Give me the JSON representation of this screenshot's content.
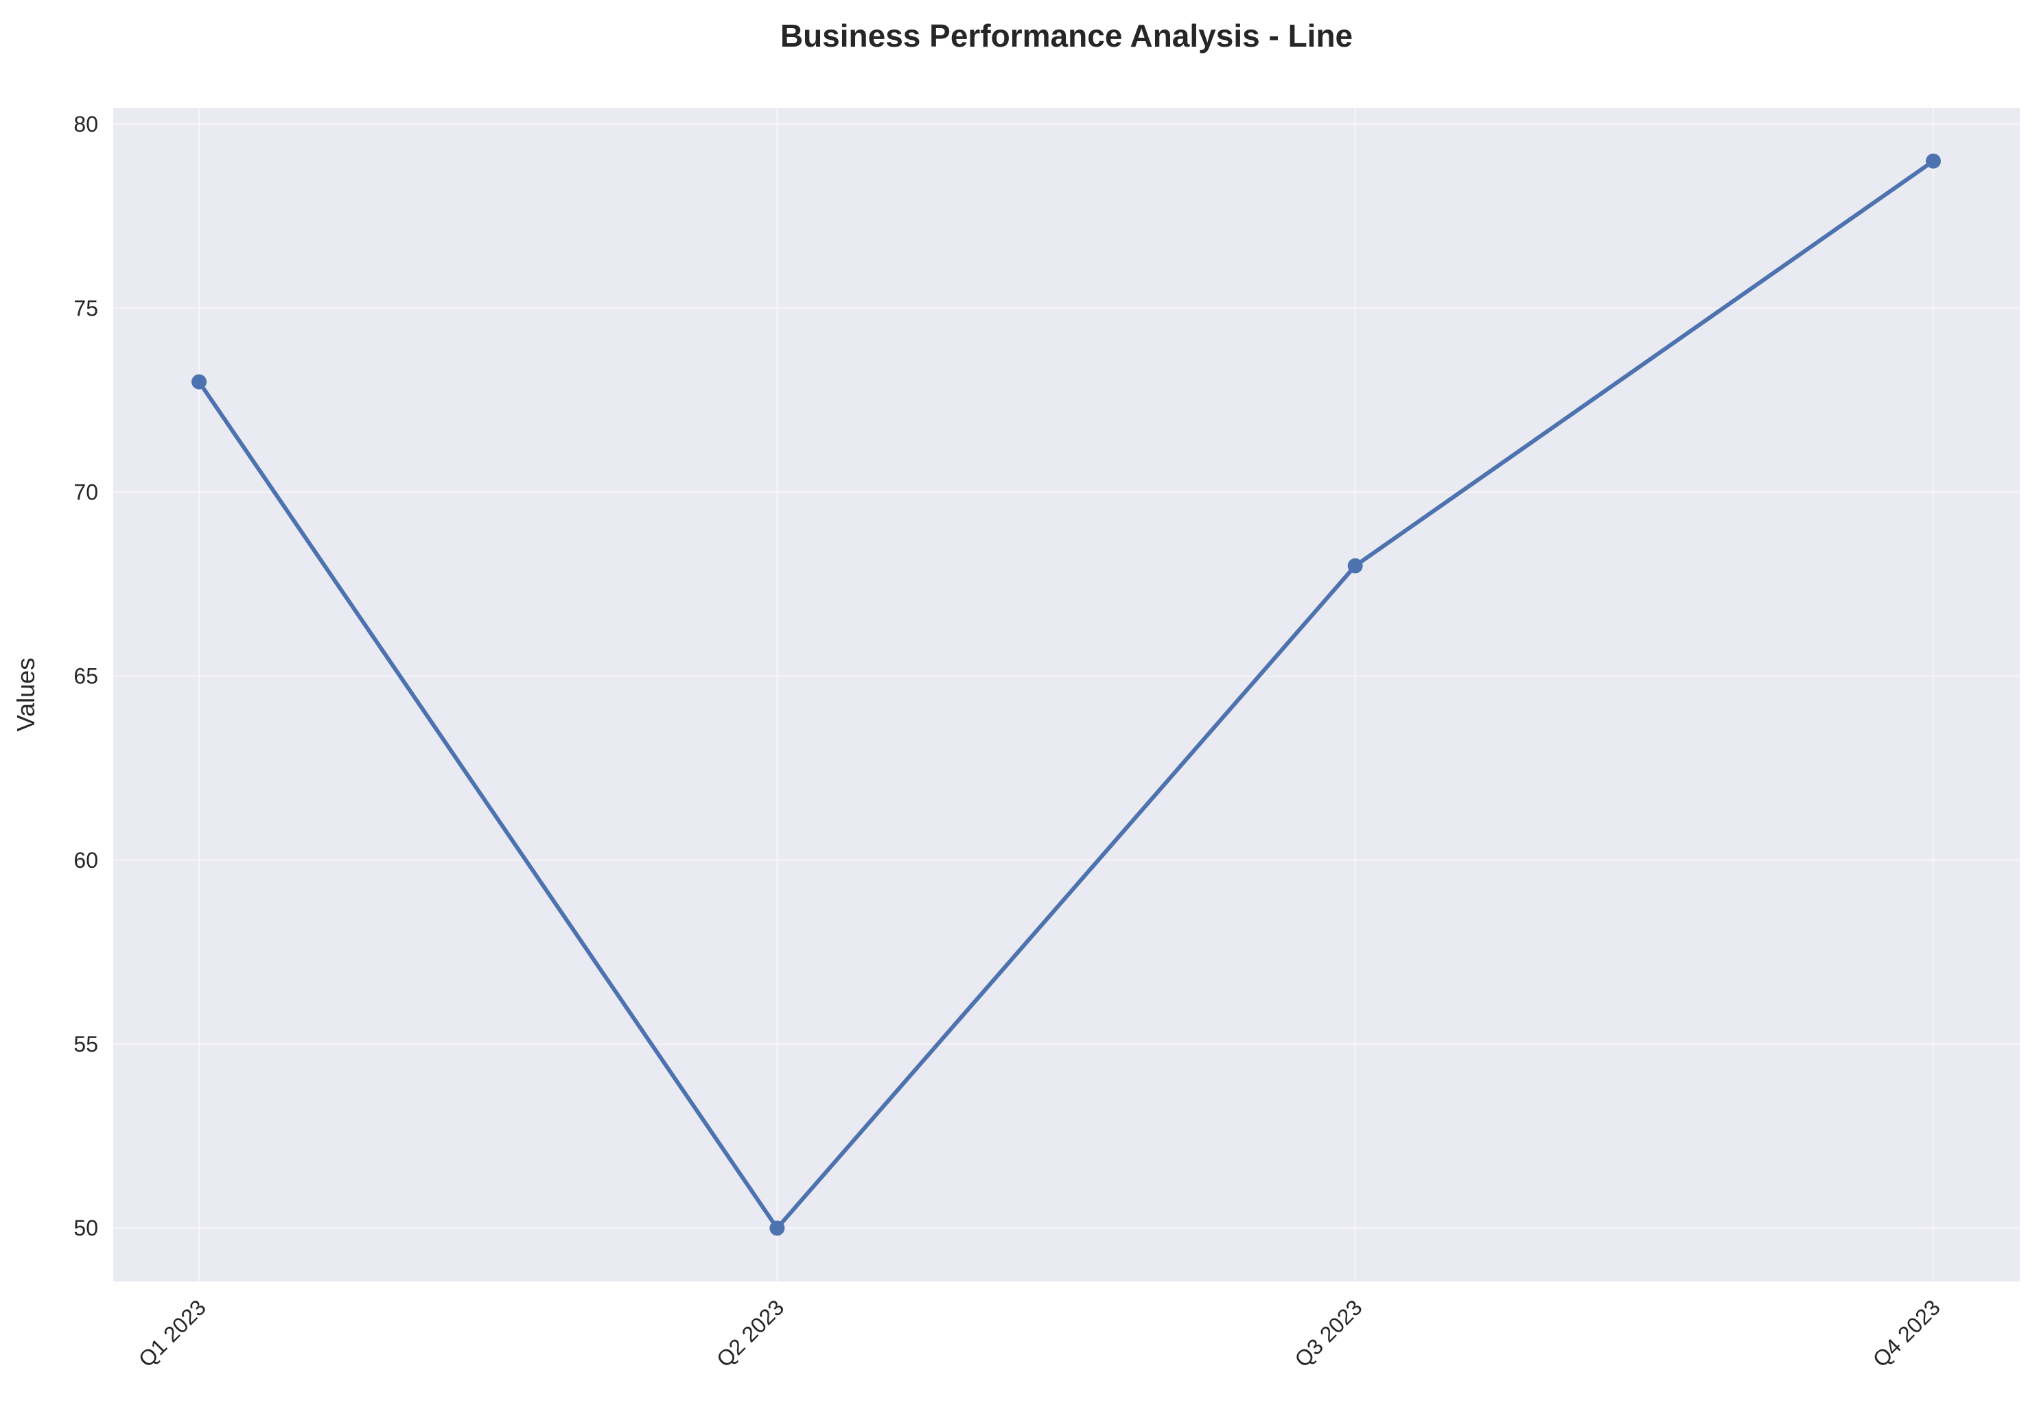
{
  "chart_data": {
    "type": "line",
    "title": "Business Performance Analysis - Line",
    "xlabel": "",
    "ylabel": "Values",
    "categories": [
      "Q1 2023",
      "Q2 2023",
      "Q3 2023",
      "Q4 2023"
    ],
    "series": [
      {
        "values": [
          73,
          50,
          68,
          79
        ]
      }
    ],
    "ylim": [
      48.55,
      80.45
    ],
    "yticks": [
      50,
      55,
      60,
      65,
      70,
      75,
      80
    ],
    "ytick_labels": [
      "50",
      "55",
      "60",
      "65",
      "70",
      "75",
      "80"
    ],
    "grid": true,
    "legend": "none",
    "colors": {
      "line": "#4c72b0",
      "plot_background": "#eaeaf2",
      "grid": "#ffffff"
    }
  }
}
